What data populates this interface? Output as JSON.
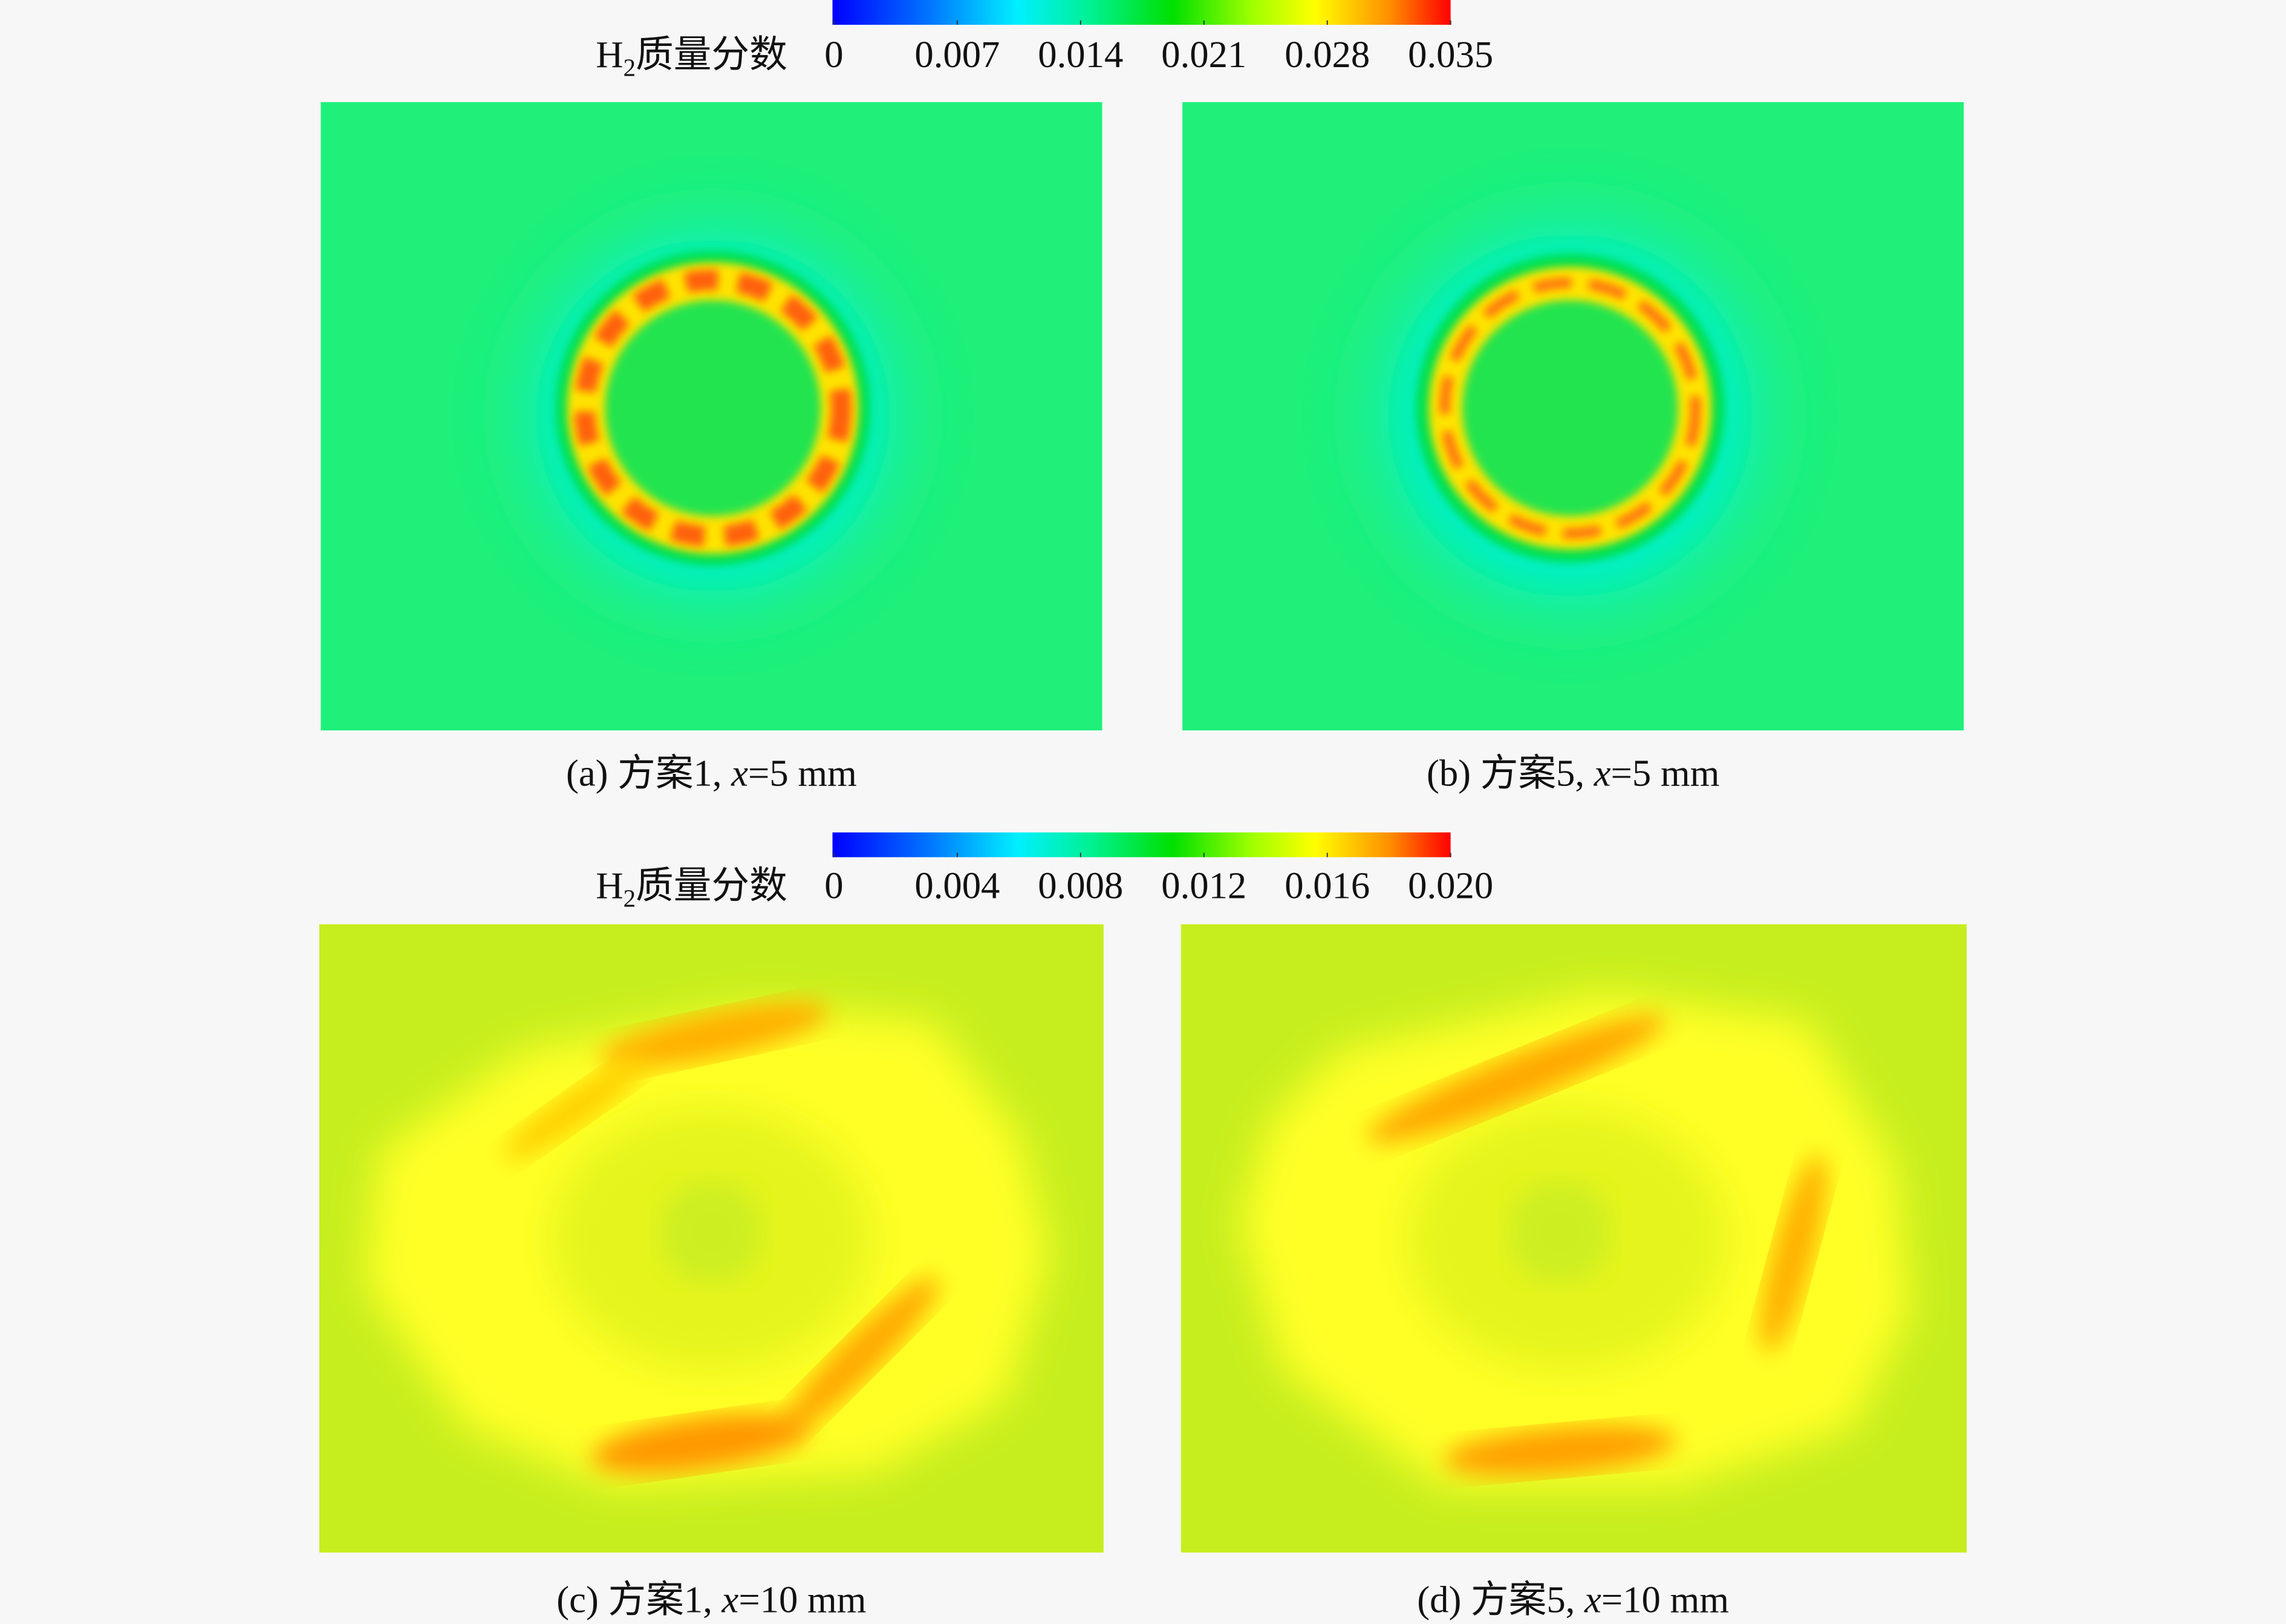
{
  "colorbars": [
    {
      "label": {
        "base": "H",
        "sub": "2",
        "text": "质量分数"
      },
      "lim": [
        0,
        0.035
      ],
      "ticks": [
        0,
        0.007,
        0.014,
        0.021,
        0.028,
        0.035
      ]
    },
    {
      "label": {
        "base": "H",
        "sub": "2",
        "text": "质量分数"
      },
      "lim": [
        0,
        0.02
      ],
      "ticks": [
        0,
        0.004,
        0.008,
        0.012,
        0.016,
        {
          "value": 0.02,
          "label": "0.020"
        }
      ]
    }
  ],
  "panels": [
    {
      "prefix": "(a) 方案1, ",
      "var": "x",
      "suffix": "=5 mm"
    },
    {
      "prefix": "(b) 方案5, ",
      "var": "x",
      "suffix": "=5 mm"
    },
    {
      "prefix": "(c) 方案1, ",
      "var": "x",
      "suffix": "=10 mm"
    },
    {
      "prefix": "(d) 方案5, ",
      "var": "x",
      "suffix": "=10 mm"
    }
  ]
}
